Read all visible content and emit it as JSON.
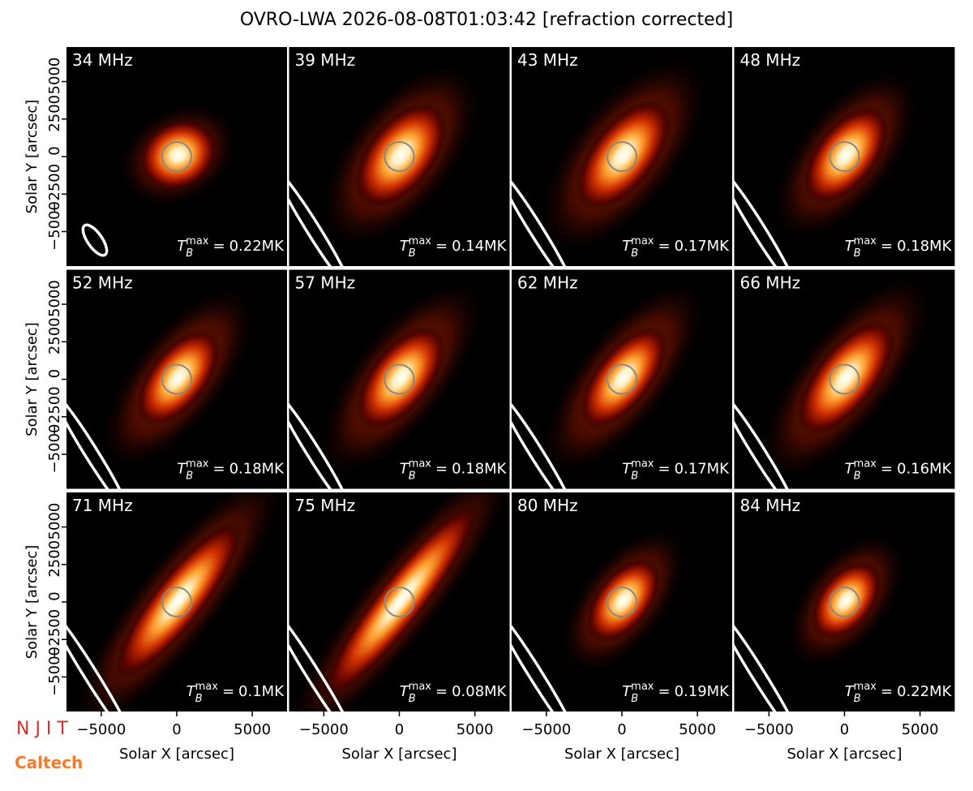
{
  "chart_data": {
    "type": "image-grid",
    "title": "OVRO-LWA 2026-08-08T01:03:42 [refraction corrected]",
    "xlabel": "Solar X [arcsec]",
    "ylabel": "Solar Y [arcsec]",
    "xlim": [
      -7300,
      7300
    ],
    "ylim": [
      -7300,
      7300
    ],
    "xticks": [
      {
        "value": -5000,
        "label": "−5000"
      },
      0,
      5000
    ],
    "yticks": [
      {
        "value": -5000,
        "label": "−5000"
      },
      {
        "value": -2500,
        "label": "−2500"
      },
      0,
      2500,
      5000
    ],
    "tb_symbol": "T",
    "tb_sub": "B",
    "tb_sup": "max",
    "tb_eq": "=",
    "panels": [
      {
        "label": "34 MHz",
        "tb": "0.22MK"
      },
      {
        "label": "39 MHz",
        "tb": "0.14MK"
      },
      {
        "label": "43 MHz",
        "tb": "0.17MK"
      },
      {
        "label": "48 MHz",
        "tb": "0.18MK"
      },
      {
        "label": "52 MHz",
        "tb": "0.18MK"
      },
      {
        "label": "57 MHz",
        "tb": "0.18MK"
      },
      {
        "label": "62 MHz",
        "tb": "0.17MK"
      },
      {
        "label": "66 MHz",
        "tb": "0.16MK"
      },
      {
        "label": "71 MHz",
        "tb": "0.1MK"
      },
      {
        "label": "75 MHz",
        "tb": "0.08MK"
      },
      {
        "label": "80 MHz",
        "tb": "0.19MK"
      },
      {
        "label": "84 MHz",
        "tb": "0.22MK"
      }
    ]
  },
  "logos": {
    "njit": "N J I T",
    "caltech": "Caltech"
  }
}
